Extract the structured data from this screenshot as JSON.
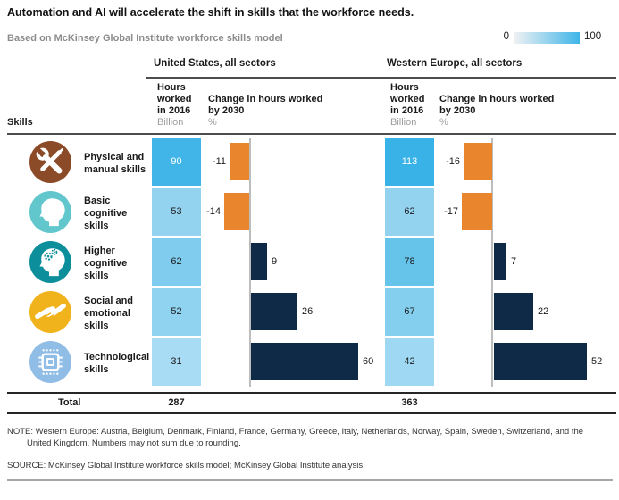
{
  "header": {
    "title": "Automation and AI will accelerate the shift in skills that the workforce needs.",
    "subtitle": "Based on McKinsey Global Institute workforce skills model"
  },
  "legend": {
    "min_label": "0",
    "max_label": "100",
    "gradient_start": "#eef1f3",
    "gradient_end": "#3fb5e8"
  },
  "skills_label": "Skills",
  "total_label": "Total",
  "panels": {
    "us": {
      "title": "United States, all sectors",
      "hours_header": "Hours\nworked\nin 2016",
      "hours_unit": "Billion",
      "change_header": "Change in hours worked\nby 2030",
      "change_unit": "%",
      "total": "287"
    },
    "we": {
      "title": "Western Europe, all sectors",
      "hours_header": "Hours\nworked\nin 2016",
      "hours_unit": "Billion",
      "change_header": "Change in hours worked\nby 2030",
      "change_unit": "%",
      "total": "363"
    }
  },
  "rows": [
    {
      "label": "Physical and\nmanual skills",
      "icon": "tools-icon",
      "icon_color": "#8c4b28",
      "us": {
        "hours": "90",
        "change": -11,
        "cell_color": "#41b5e7",
        "text_color": "#ffffff"
      },
      "we": {
        "hours": "113",
        "change": -16,
        "cell_color": "#38b2e7",
        "text_color": "#ffffff"
      }
    },
    {
      "label": "Basic\ncognitive skills",
      "icon": "head-icon",
      "icon_color": "#62c6cd",
      "us": {
        "hours": "53",
        "change": -14,
        "cell_color": "#93d3f0",
        "text_color": "#1a1a1a"
      },
      "we": {
        "hours": "62",
        "change": -17,
        "cell_color": "#93d3f0",
        "text_color": "#1a1a1a"
      }
    },
    {
      "label": "Higher\ncognitive skills",
      "icon": "head-gears-icon",
      "icon_color": "#0d8f9b",
      "us": {
        "hours": "62",
        "change": 9,
        "cell_color": "#7fccee",
        "text_color": "#1a1a1a"
      },
      "we": {
        "hours": "78",
        "change": 7,
        "cell_color": "#66c4ea",
        "text_color": "#1a1a1a"
      }
    },
    {
      "label": "Social and\nemotional skills",
      "icon": "handshake-icon",
      "icon_color": "#f0b31c",
      "us": {
        "hours": "52",
        "change": 26,
        "cell_color": "#90d3f0",
        "text_color": "#1a1a1a"
      },
      "we": {
        "hours": "67",
        "change": 22,
        "cell_color": "#84cfee",
        "text_color": "#1a1a1a"
      }
    },
    {
      "label": "Technological\nskills",
      "icon": "chip-icon",
      "icon_color": "#8fbde6",
      "us": {
        "hours": "31",
        "change": 60,
        "cell_color": "#a7dcf4",
        "text_color": "#1a1a1a"
      },
      "we": {
        "hours": "42",
        "change": 52,
        "cell_color": "#9ed8f2",
        "text_color": "#1a1a1a"
      }
    }
  ],
  "colors": {
    "negative_bar": "#e9852c",
    "positive_bar": "#0e2a47",
    "axis_line": "#bdbdbd"
  },
  "notes": {
    "note_line1": "NOTE: Western Europe: Austria, Belgium, Denmark, Finland, France, Germany, Greece, Italy, Netherlands, Norway, Spain, Sweden, Switzerland, and the",
    "note_line2": "United Kingdom. Numbers may not sum due to rounding.",
    "source": "SOURCE:  McKinsey Global Institute workforce skills model; McKinsey Global Institute analysis"
  },
  "chart_data": [
    {
      "type": "bar",
      "title": "United States, all sectors",
      "categories": [
        "Physical and manual skills",
        "Basic cognitive skills",
        "Higher cognitive skills",
        "Social and emotional skills",
        "Technological skills"
      ],
      "series": [
        {
          "name": "Hours worked in 2016 (billion)",
          "values": [
            90,
            53,
            62,
            52,
            31
          ]
        },
        {
          "name": "Change in hours worked by 2030 (%)",
          "values": [
            -11,
            -14,
            9,
            26,
            60
          ]
        }
      ],
      "total_hours_2016": 287,
      "orientation": "horizontal",
      "legend_scale": {
        "min": 0,
        "max": 100
      }
    },
    {
      "type": "bar",
      "title": "Western Europe, all sectors",
      "categories": [
        "Physical and manual skills",
        "Basic cognitive skills",
        "Higher cognitive skills",
        "Social and emotional skills",
        "Technological skills"
      ],
      "series": [
        {
          "name": "Hours worked in 2016 (billion)",
          "values": [
            113,
            62,
            78,
            67,
            42
          ]
        },
        {
          "name": "Change in hours worked by 2030 (%)",
          "values": [
            -16,
            -17,
            7,
            22,
            52
          ]
        }
      ],
      "total_hours_2016": 363,
      "orientation": "horizontal",
      "legend_scale": {
        "min": 0,
        "max": 100
      }
    }
  ]
}
